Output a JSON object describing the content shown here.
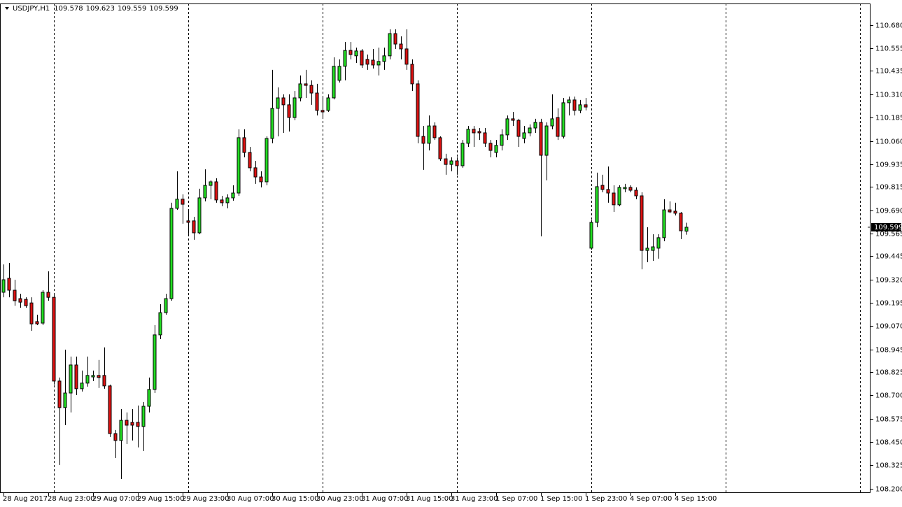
{
  "chart_data": {
    "type": "candlestick",
    "symbol": "USDJPY,H1",
    "header_ohlc": [
      109.578,
      109.623,
      109.559,
      109.599
    ],
    "last_price": 109.599,
    "up_color": "#22dd22",
    "down_color": "#dd1111",
    "ylim": [
      108.177,
      110.796
    ],
    "yticks": [
      {
        "value": 110.68,
        "label": "110.680"
      },
      {
        "value": 110.555,
        "label": "110.555"
      },
      {
        "value": 110.435,
        "label": "110.435"
      },
      {
        "value": 110.31,
        "label": "110.310"
      },
      {
        "value": 110.185,
        "label": "110.185"
      },
      {
        "value": 110.06,
        "label": "110.060"
      },
      {
        "value": 109.935,
        "label": "109.935"
      },
      {
        "value": 109.815,
        "label": "109.815"
      },
      {
        "value": 109.69,
        "label": "109.690"
      },
      {
        "value": 109.565,
        "label": "109.565"
      },
      {
        "value": 109.445,
        "label": "109.445"
      },
      {
        "value": 109.32,
        "label": "109.320"
      },
      {
        "value": 109.195,
        "label": "109.195"
      },
      {
        "value": 109.07,
        "label": "109.070"
      },
      {
        "value": 108.945,
        "label": "108.945"
      },
      {
        "value": 108.825,
        "label": "108.825"
      },
      {
        "value": 108.7,
        "label": "108.700"
      },
      {
        "value": 108.575,
        "label": "108.575"
      },
      {
        "value": 108.45,
        "label": "108.450"
      },
      {
        "value": 108.325,
        "label": "108.325"
      },
      {
        "value": 108.2,
        "label": "108.200"
      }
    ],
    "categories": [
      "28 Aug 2017",
      null,
      null,
      null,
      null,
      null,
      null,
      null,
      "28 Aug 23:00",
      null,
      null,
      null,
      null,
      null,
      null,
      null,
      "29 Aug 07:00",
      null,
      null,
      null,
      null,
      null,
      null,
      null,
      "29 Aug 15:00",
      null,
      null,
      null,
      null,
      null,
      null,
      null,
      "29 Aug 23:00",
      null,
      null,
      null,
      null,
      null,
      null,
      null,
      "30 Aug 07:00",
      null,
      null,
      null,
      null,
      null,
      null,
      null,
      "30 Aug 15:00",
      null,
      null,
      null,
      null,
      null,
      null,
      null,
      "30 Aug 23:00",
      null,
      null,
      null,
      null,
      null,
      null,
      null,
      "31 Aug 07:00",
      null,
      null,
      null,
      null,
      null,
      null,
      null,
      "31 Aug 15:00",
      null,
      null,
      null,
      null,
      null,
      null,
      null,
      "31 Aug 23:00",
      null,
      null,
      null,
      null,
      null,
      null,
      null,
      "1 Sep 07:00",
      null,
      null,
      null,
      null,
      null,
      null,
      null,
      "1 Sep 15:00",
      null,
      null,
      null,
      null,
      null,
      null,
      null,
      "1 Sep 23:00",
      null,
      null,
      null,
      null,
      null,
      null,
      null,
      "4 Sep 07:00",
      null,
      null,
      null,
      null,
      null,
      null,
      null,
      "4 Sep 15:00",
      null,
      null
    ],
    "open": [
      109.251,
      109.326,
      109.262,
      109.217,
      109.213,
      109.194,
      109.094,
      109.086,
      109.251,
      109.224,
      108.776,
      108.634,
      108.712,
      108.862,
      108.735,
      108.765,
      108.798,
      108.806,
      108.806,
      108.75,
      108.495,
      108.458,
      108.566,
      108.555,
      108.555,
      108.533,
      108.641,
      108.731,
      109.023,
      109.142,
      109.217,
      109.7,
      109.749,
      109.633,
      109.633,
      109.569,
      109.756,
      109.823,
      109.842,
      109.745,
      109.73,
      109.756,
      109.782,
      110.078,
      109.999,
      109.917,
      109.868,
      109.842,
      110.074,
      110.235,
      110.291,
      110.254,
      110.186,
      110.291,
      110.366,
      110.358,
      110.317,
      110.224,
      110.224,
      110.291,
      110.385,
      110.46,
      110.545,
      110.516,
      110.542,
      110.497,
      110.493,
      110.467,
      110.486,
      110.516,
      110.635,
      110.579,
      110.553,
      110.471,
      110.366,
      110.085,
      110.048,
      110.141,
      110.078,
      109.965,
      109.935,
      109.954,
      109.928,
      110.048,
      110.123,
      110.111,
      110.104,
      110.048,
      109.999,
      110.037,
      110.093,
      110.179,
      110.171,
      110.074,
      110.104,
      110.13,
      110.16,
      109.984,
      110.141,
      110.186,
      110.085,
      110.265,
      110.28,
      110.224,
      110.254,
      109.487,
      109.625,
      109.823,
      109.801,
      109.782,
      109.719,
      109.805,
      109.812,
      109.797,
      109.767,
      109.475,
      109.475,
      109.487,
      109.543,
      109.692,
      109.685,
      109.674,
      109.578
    ],
    "high": [
      109.4,
      109.408,
      109.318,
      109.243,
      109.224,
      109.224,
      109.131,
      109.262,
      109.363,
      109.243,
      108.795,
      108.944,
      108.907,
      108.907,
      108.832,
      108.907,
      108.832,
      108.889,
      108.956,
      108.757,
      108.514,
      108.626,
      108.608,
      108.626,
      108.645,
      108.664,
      108.795,
      109.075,
      109.187,
      109.243,
      109.73,
      109.898,
      109.775,
      109.692,
      109.655,
      109.805,
      109.909,
      109.85,
      109.861,
      109.767,
      109.775,
      109.823,
      110.123,
      110.123,
      110.029,
      109.954,
      109.898,
      110.085,
      110.441,
      110.347,
      110.31,
      110.31,
      110.328,
      110.411,
      110.441,
      110.385,
      110.366,
      110.291,
      110.31,
      110.508,
      110.497,
      110.59,
      110.59,
      110.56,
      110.553,
      110.523,
      110.553,
      110.56,
      110.56,
      110.658,
      110.658,
      110.62,
      110.658,
      110.497,
      110.385,
      110.141,
      110.197,
      110.16,
      110.085,
      109.992,
      109.973,
      109.973,
      110.066,
      110.141,
      110.141,
      110.13,
      110.13,
      110.066,
      110.066,
      110.123,
      110.197,
      110.216,
      110.179,
      110.141,
      110.149,
      110.179,
      110.179,
      110.16,
      110.31,
      110.235,
      110.291,
      110.298,
      110.298,
      110.28,
      110.291,
      109.636,
      109.891,
      109.88,
      109.924,
      109.823,
      109.823,
      109.831,
      109.823,
      109.812,
      109.786,
      109.599,
      109.562,
      109.562,
      109.749,
      109.737,
      109.73,
      109.681,
      109.623
    ],
    "low": [
      109.224,
      109.224,
      109.179,
      109.168,
      109.168,
      109.045,
      109.075,
      109.075,
      109.206,
      108.757,
      108.327,
      108.54,
      108.608,
      108.701,
      108.72,
      108.746,
      108.776,
      108.739,
      108.735,
      108.477,
      108.364,
      108.252,
      108.439,
      108.458,
      108.421,
      108.402,
      108.608,
      108.712,
      109.0,
      109.131,
      109.206,
      109.692,
      109.618,
      109.562,
      109.532,
      109.562,
      109.737,
      109.749,
      109.73,
      109.711,
      109.7,
      109.741,
      109.767,
      109.973,
      109.898,
      109.831,
      109.812,
      109.823,
      110.048,
      110.085,
      110.104,
      110.111,
      110.171,
      110.272,
      110.291,
      110.254,
      110.197,
      110.186,
      110.216,
      110.283,
      110.373,
      110.385,
      110.497,
      110.478,
      110.452,
      110.441,
      110.448,
      110.411,
      110.441,
      110.497,
      110.553,
      110.497,
      110.441,
      110.328,
      110.048,
      109.906,
      110.01,
      110.066,
      109.954,
      109.88,
      109.898,
      109.88,
      109.917,
      110.029,
      110.029,
      110.066,
      110.029,
      109.973,
      109.973,
      110.01,
      110.066,
      110.141,
      110.029,
      110.048,
      110.085,
      110.104,
      109.55,
      109.85,
      110.123,
      110.066,
      110.074,
      110.197,
      110.197,
      110.209,
      110.224,
      109.479,
      109.599,
      109.786,
      109.73,
      109.681,
      109.711,
      109.786,
      109.786,
      109.749,
      109.374,
      109.412,
      109.419,
      109.431,
      109.524,
      109.674,
      109.662,
      109.535,
      109.559
    ],
    "close": [
      109.318,
      109.262,
      109.206,
      109.198,
      109.179,
      109.082,
      109.082,
      109.251,
      109.224,
      108.776,
      108.634,
      108.712,
      108.862,
      108.735,
      108.765,
      108.806,
      108.806,
      108.795,
      108.75,
      108.495,
      108.458,
      108.566,
      108.54,
      108.54,
      108.533,
      108.641,
      108.731,
      109.023,
      109.142,
      109.217,
      109.7,
      109.749,
      109.722,
      109.625,
      109.569,
      109.756,
      109.823,
      109.842,
      109.745,
      109.73,
      109.756,
      109.782,
      110.078,
      109.999,
      109.917,
      109.868,
      109.842,
      110.074,
      110.235,
      110.291,
      110.254,
      110.186,
      110.291,
      110.366,
      110.358,
      110.317,
      110.224,
      110.216,
      110.291,
      110.46,
      110.46,
      110.545,
      110.523,
      110.542,
      110.467,
      110.471,
      110.467,
      110.486,
      110.516,
      110.635,
      110.579,
      110.553,
      110.471,
      110.366,
      110.085,
      110.048,
      110.141,
      110.078,
      109.965,
      109.935,
      109.954,
      109.928,
      110.048,
      110.123,
      110.104,
      110.104,
      110.048,
      110.01,
      110.037,
      110.093,
      110.179,
      110.171,
      110.085,
      110.104,
      110.13,
      110.16,
      109.984,
      110.141,
      110.179,
      110.085,
      110.265,
      110.28,
      110.224,
      110.254,
      110.242,
      109.625,
      109.816,
      109.801,
      109.782,
      109.719,
      109.812,
      109.812,
      109.797,
      109.767,
      109.475,
      109.487,
      109.494,
      109.543,
      109.692,
      109.681,
      109.674,
      109.58,
      109.599
    ]
  }
}
